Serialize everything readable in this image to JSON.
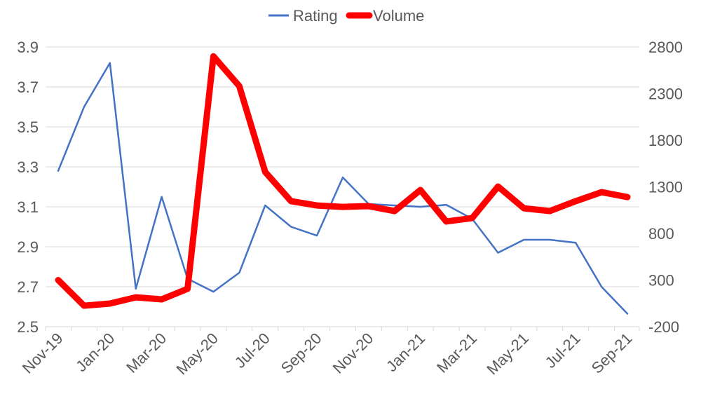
{
  "chart_data": {
    "type": "line",
    "title": "",
    "legend": {
      "placement": "top",
      "entries": [
        "Rating",
        "Volume"
      ]
    },
    "categories": [
      "Nov-19",
      "Dec-19",
      "Jan-20",
      "Feb-20",
      "Mar-20",
      "Apr-20",
      "May-20",
      "Jun-20",
      "Jul-20",
      "Aug-20",
      "Sep-20",
      "Oct-20",
      "Nov-20",
      "Dec-20",
      "Jan-21",
      "Feb-21",
      "Mar-21",
      "Apr-21",
      "May-21",
      "Jun-21",
      "Jul-21",
      "Aug-21",
      "Sep-21"
    ],
    "x_tick_labels": [
      "Nov-19",
      "Jan-20",
      "Mar-20",
      "May-20",
      "Jul-20",
      "Sep-20",
      "Nov-20",
      "Jan-21",
      "Mar-21",
      "May-21",
      "Jul-21",
      "Sep-21"
    ],
    "series": [
      {
        "name": "Rating",
        "axis": "left",
        "color": "#4472C4",
        "values": [
          3.28,
          3.6,
          3.82,
          2.69,
          3.15,
          2.74,
          2.675,
          2.77,
          3.107,
          3.0,
          2.956,
          3.247,
          3.114,
          3.107,
          3.1,
          3.11,
          3.04,
          2.87,
          2.935,
          2.935,
          2.92,
          2.7,
          2.565
        ]
      },
      {
        "name": "Volume",
        "axis": "right",
        "color": "#FF0000",
        "values": [
          300,
          25,
          48,
          115,
          93,
          206,
          2700,
          2380,
          1460,
          1146,
          1100,
          1085,
          1093,
          1040,
          1266,
          928,
          965,
          1303,
          1070,
          1040,
          1146,
          1243,
          1190
        ]
      }
    ],
    "left_axis": {
      "ylim": [
        2.5,
        3.9
      ],
      "ticks": [
        "2.5",
        "2.7",
        "2.9",
        "3.1",
        "3.3",
        "3.5",
        "3.7",
        "3.9"
      ]
    },
    "right_axis": {
      "ylim": [
        -200,
        2800
      ],
      "ticks": [
        "-200",
        "300",
        "800",
        "1300",
        "1800",
        "2300",
        "2800"
      ]
    },
    "grid": true
  }
}
